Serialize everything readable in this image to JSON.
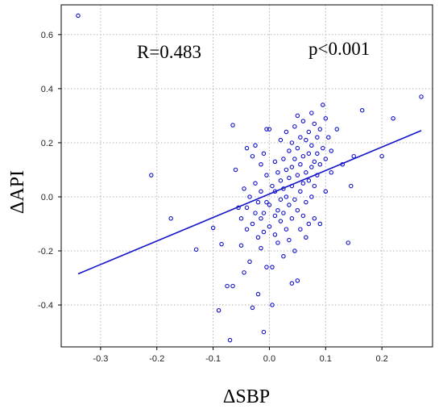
{
  "chart_data": {
    "type": "scatter",
    "xlabel": "ΔSBP",
    "ylabel": "ΔAPI",
    "xlim": [
      -0.37,
      0.29
    ],
    "ylim": [
      -0.555,
      0.71
    ],
    "x_ticks": [
      -0.3,
      -0.2,
      -0.1,
      0.0,
      0.1,
      0.2
    ],
    "x_tick_labels": [
      "-0.3",
      "-0.2",
      "-0.1",
      "0.0",
      "0.1",
      "0.2"
    ],
    "y_ticks": [
      -0.4,
      -0.2,
      0.0,
      0.2,
      0.4,
      0.6
    ],
    "y_tick_labels": [
      "-0.4",
      "-0.2",
      "0.0",
      "0.2",
      "0.4",
      "0.6"
    ],
    "grid": true,
    "annotations": [
      "R=0.483",
      "p<0.001"
    ],
    "regression_line": {
      "x": [
        -0.34,
        0.27
      ],
      "y": [
        -0.285,
        0.245
      ]
    },
    "point_color": "#1010c8",
    "line_color": "#1414c8",
    "points": [
      [
        -0.34,
        0.67
      ],
      [
        -0.21,
        0.08
      ],
      [
        -0.175,
        -0.08
      ],
      [
        -0.13,
        -0.195
      ],
      [
        -0.1,
        -0.115
      ],
      [
        -0.09,
        -0.42
      ],
      [
        -0.085,
        -0.175
      ],
      [
        -0.075,
        -0.33
      ],
      [
        -0.07,
        -0.53
      ],
      [
        -0.065,
        0.265
      ],
      [
        -0.065,
        -0.33
      ],
      [
        -0.06,
        0.1
      ],
      [
        -0.055,
        -0.04
      ],
      [
        -0.05,
        -0.08
      ],
      [
        -0.05,
        -0.18
      ],
      [
        -0.045,
        0.03
      ],
      [
        -0.045,
        -0.28
      ],
      [
        -0.04,
        -0.12
      ],
      [
        -0.04,
        -0.04
      ],
      [
        -0.04,
        0.18
      ],
      [
        -0.035,
        0.0
      ],
      [
        -0.035,
        -0.24
      ],
      [
        -0.03,
        0.15
      ],
      [
        -0.03,
        -0.1
      ],
      [
        -0.03,
        -0.41
      ],
      [
        -0.025,
        0.19
      ],
      [
        -0.025,
        0.05
      ],
      [
        -0.025,
        -0.06
      ],
      [
        -0.02,
        -0.02
      ],
      [
        -0.02,
        -0.15
      ],
      [
        -0.02,
        -0.36
      ],
      [
        -0.015,
        0.12
      ],
      [
        -0.015,
        0.02
      ],
      [
        -0.015,
        -0.08
      ],
      [
        -0.015,
        -0.19
      ],
      [
        -0.01,
        0.16
      ],
      [
        -0.01,
        -0.06
      ],
      [
        -0.01,
        -0.13
      ],
      [
        -0.01,
        -0.5
      ],
      [
        -0.005,
        0.25
      ],
      [
        -0.005,
        0.08
      ],
      [
        -0.005,
        -0.02
      ],
      [
        -0.005,
        -0.26
      ],
      [
        0.0,
        0.25
      ],
      [
        0.0,
        -0.03
      ],
      [
        0.0,
        -0.11
      ],
      [
        0.005,
        0.04
      ],
      [
        0.005,
        -0.26
      ],
      [
        0.005,
        -0.4
      ],
      [
        0.01,
        0.13
      ],
      [
        0.01,
        0.02
      ],
      [
        0.01,
        -0.07
      ],
      [
        0.01,
        -0.14
      ],
      [
        0.015,
        0.09
      ],
      [
        0.015,
        -0.05
      ],
      [
        0.015,
        -0.17
      ],
      [
        0.02,
        0.21
      ],
      [
        0.02,
        0.06
      ],
      [
        0.02,
        -0.01
      ],
      [
        0.02,
        -0.09
      ],
      [
        0.025,
        0.14
      ],
      [
        0.025,
        0.03
      ],
      [
        0.025,
        -0.06
      ],
      [
        0.025,
        -0.22
      ],
      [
        0.03,
        0.24
      ],
      [
        0.03,
        0.1
      ],
      [
        0.03,
        0.0
      ],
      [
        0.03,
        -0.12
      ],
      [
        0.035,
        0.17
      ],
      [
        0.035,
        0.07
      ],
      [
        0.035,
        -0.03
      ],
      [
        0.035,
        -0.16
      ],
      [
        0.04,
        0.2
      ],
      [
        0.04,
        0.11
      ],
      [
        0.04,
        0.04
      ],
      [
        0.04,
        -0.08
      ],
      [
        0.04,
        -0.32
      ],
      [
        0.045,
        0.26
      ],
      [
        0.045,
        0.14
      ],
      [
        0.045,
        -0.01
      ],
      [
        0.045,
        -0.2
      ],
      [
        0.05,
        0.3
      ],
      [
        0.05,
        0.18
      ],
      [
        0.05,
        0.08
      ],
      [
        0.05,
        -0.05
      ],
      [
        0.05,
        -0.31
      ],
      [
        0.055,
        0.22
      ],
      [
        0.055,
        0.12
      ],
      [
        0.055,
        0.02
      ],
      [
        0.055,
        -0.12
      ],
      [
        0.06,
        0.28
      ],
      [
        0.06,
        0.15
      ],
      [
        0.06,
        0.05
      ],
      [
        0.06,
        -0.07
      ],
      [
        0.065,
        0.21
      ],
      [
        0.065,
        0.09
      ],
      [
        0.065,
        -0.02
      ],
      [
        0.065,
        -0.15
      ],
      [
        0.07,
        0.24
      ],
      [
        0.07,
        0.16
      ],
      [
        0.07,
        0.06
      ],
      [
        0.07,
        -0.1
      ],
      [
        0.075,
        0.31
      ],
      [
        0.075,
        0.19
      ],
      [
        0.075,
        0.11
      ],
      [
        0.075,
        0.0
      ],
      [
        0.08,
        0.27
      ],
      [
        0.08,
        0.13
      ],
      [
        0.08,
        0.04
      ],
      [
        0.08,
        -0.08
      ],
      [
        0.085,
        0.22
      ],
      [
        0.085,
        0.16
      ],
      [
        0.085,
        0.08
      ],
      [
        0.09,
        0.25
      ],
      [
        0.09,
        0.12
      ],
      [
        0.09,
        -0.1
      ],
      [
        0.095,
        0.34
      ],
      [
        0.095,
        0.18
      ],
      [
        0.1,
        0.29
      ],
      [
        0.1,
        0.14
      ],
      [
        0.1,
        0.02
      ],
      [
        0.105,
        0.22
      ],
      [
        0.11,
        0.17
      ],
      [
        0.11,
        0.09
      ],
      [
        0.12,
        0.25
      ],
      [
        0.13,
        0.12
      ],
      [
        0.14,
        -0.17
      ],
      [
        0.145,
        0.04
      ],
      [
        0.15,
        0.15
      ],
      [
        0.165,
        0.32
      ],
      [
        0.2,
        0.15
      ],
      [
        0.22,
        0.29
      ],
      [
        0.27,
        0.37
      ]
    ]
  }
}
